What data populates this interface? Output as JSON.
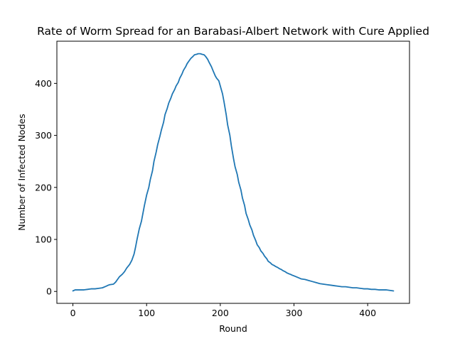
{
  "chart_data": {
    "type": "line",
    "title": "Rate of Worm Spread for an Barabasi-Albert Network with Cure Applied",
    "xlabel": "Round",
    "ylabel": "Number of Infected Nodes",
    "xlim": [
      -21.75,
      456.75
    ],
    "ylim": [
      -22.9,
      481.1
    ],
    "xticks": [
      0,
      100,
      200,
      300,
      400
    ],
    "yticks": [
      0,
      100,
      200,
      300,
      400
    ],
    "grid": false,
    "series_color": "#1f77b4",
    "series": [
      {
        "x": [
          0,
          3,
          8,
          15,
          20,
          25,
          30,
          35,
          40,
          45,
          48,
          50,
          55,
          58,
          60,
          63,
          67,
          70,
          73,
          77,
          80,
          83,
          85,
          87,
          90,
          93,
          95,
          97,
          100,
          103,
          105,
          108,
          110,
          113,
          115,
          118,
          120,
          123,
          125,
          128,
          130,
          133,
          135,
          138,
          140,
          143,
          145,
          148,
          150,
          153,
          155,
          158,
          160,
          163,
          165,
          168,
          170,
          173,
          175,
          178,
          180,
          183,
          185,
          188,
          190,
          193,
          195,
          198,
          200,
          203,
          205,
          208,
          210,
          213,
          215,
          218,
          220,
          223,
          225,
          228,
          230,
          233,
          235,
          238,
          240,
          243,
          245,
          248,
          250,
          253,
          255,
          258,
          260,
          263,
          265,
          268,
          270,
          273,
          275,
          278,
          280,
          283,
          285,
          288,
          290,
          293,
          295,
          298,
          300,
          305,
          310,
          315,
          320,
          325,
          330,
          335,
          340,
          345,
          350,
          355,
          360,
          365,
          370,
          375,
          380,
          385,
          390,
          395,
          400,
          405,
          410,
          415,
          420,
          425,
          430,
          435
        ],
        "y": [
          1,
          3,
          3,
          3,
          4,
          5,
          5,
          6,
          7,
          10,
          12,
          13,
          14,
          18,
          22,
          28,
          33,
          38,
          45,
          52,
          60,
          72,
          85,
          100,
          120,
          135,
          150,
          165,
          185,
          200,
          215,
          232,
          250,
          268,
          282,
          298,
          310,
          325,
          340,
          352,
          362,
          372,
          380,
          388,
          395,
          402,
          410,
          418,
          425,
          432,
          438,
          444,
          448,
          452,
          455,
          456,
          457,
          457,
          456,
          455,
          452,
          446,
          440,
          432,
          425,
          415,
          410,
          405,
          395,
          380,
          365,
          340,
          320,
          300,
          280,
          255,
          240,
          225,
          210,
          195,
          180,
          165,
          150,
          138,
          128,
          118,
          108,
          98,
          90,
          84,
          78,
          73,
          68,
          63,
          58,
          55,
          52,
          50,
          48,
          46,
          44,
          42,
          40,
          38,
          36,
          34,
          33,
          31,
          30,
          27,
          24,
          23,
          21,
          19,
          17,
          15,
          14,
          13,
          12,
          11,
          10,
          9,
          9,
          8,
          7,
          7,
          6,
          5,
          5,
          4,
          4,
          3,
          3,
          3,
          2,
          1
        ]
      }
    ]
  }
}
